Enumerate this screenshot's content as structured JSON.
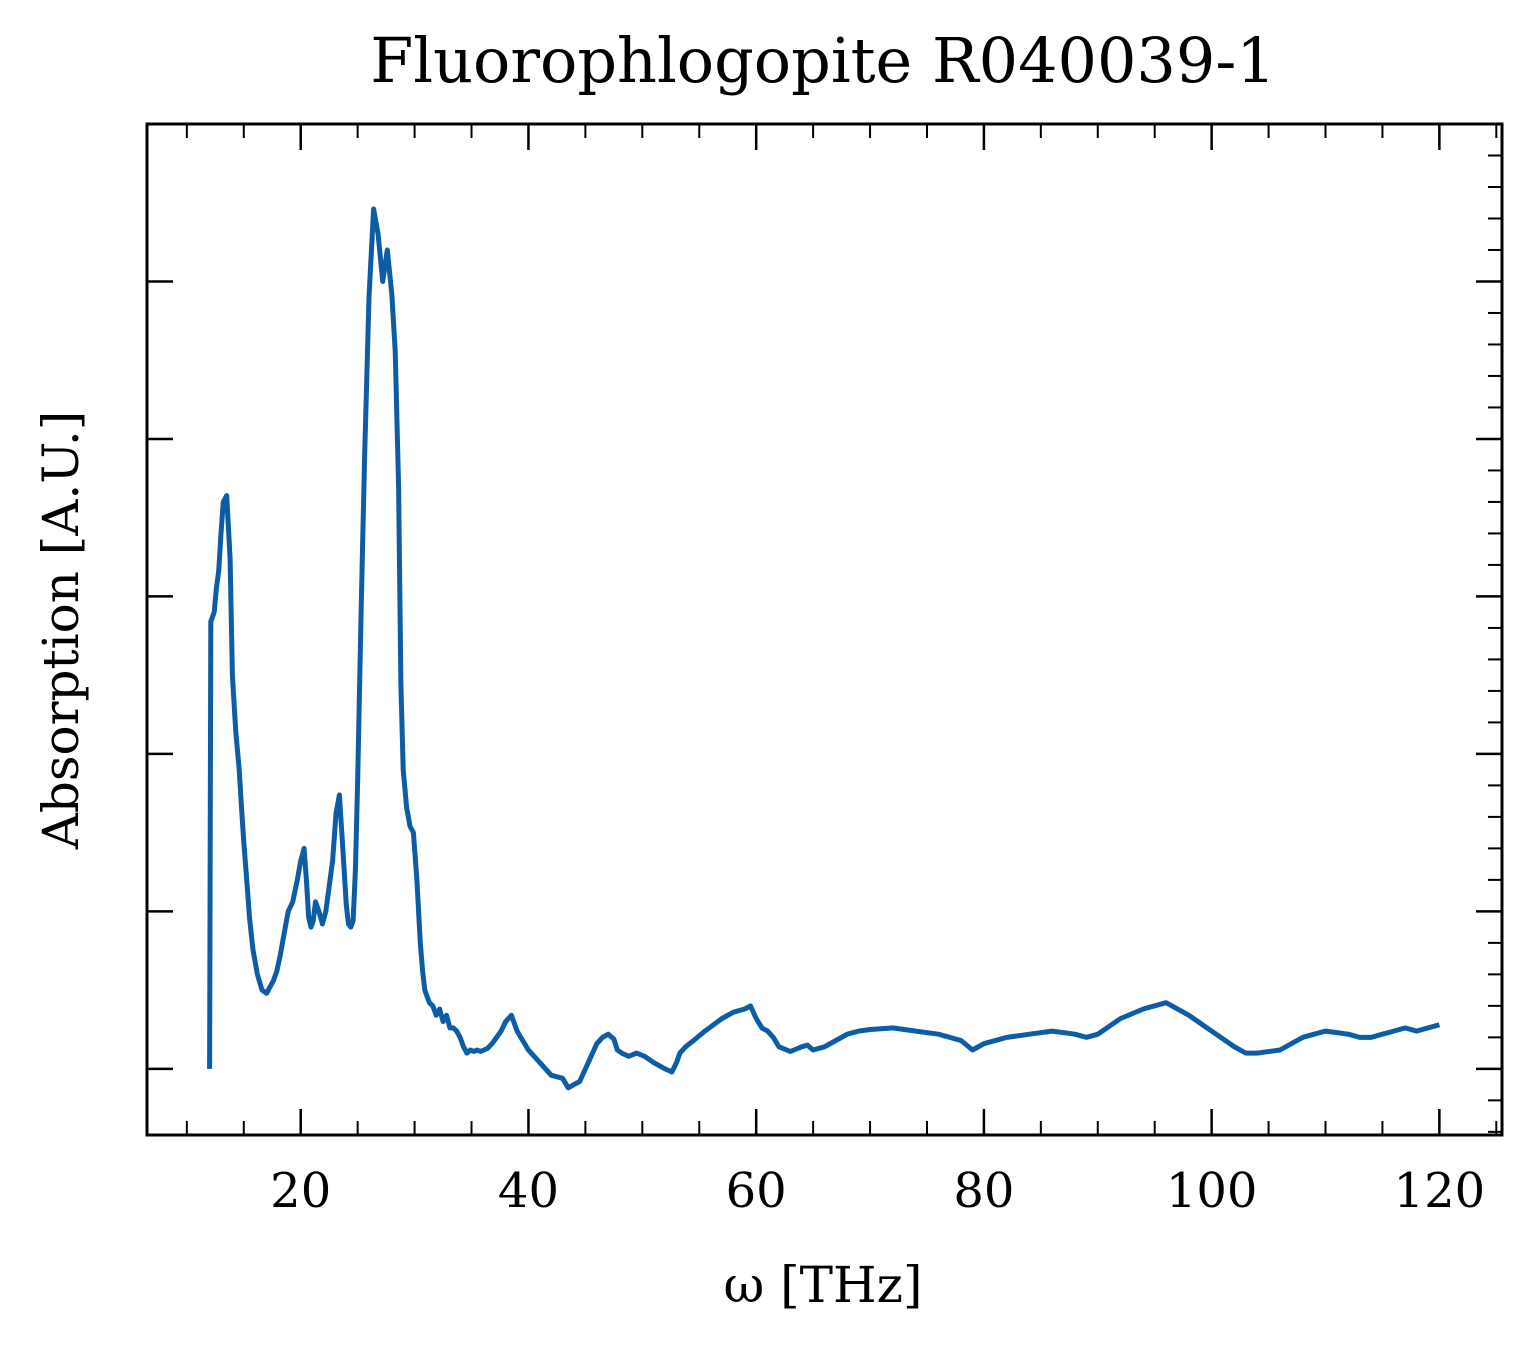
{
  "chart_data": {
    "type": "line",
    "title": "Fluorophlogopite R040039-1",
    "xlabel": "ω [THz]",
    "ylabel": "Absorption [A.U.]",
    "xlim": [
      6.5,
      125.5
    ],
    "ylim": [
      -0.21,
      3.0
    ],
    "xticks": [
      20,
      40,
      60,
      80,
      100,
      120
    ],
    "xtick_labels": [
      "20",
      "40",
      "60",
      "80",
      "100",
      "120"
    ],
    "yticks": [
      0.0,
      0.5,
      1.0,
      1.5,
      2.0,
      2.5
    ],
    "y_tick_labels_shown": false,
    "grid": false,
    "line_color": "#0c5da5",
    "series": [
      {
        "name": "",
        "x": [
          12.0,
          12.1,
          12.4,
          12.6,
          12.8,
          13.0,
          13.2,
          13.5,
          13.8,
          14.0,
          14.3,
          14.6,
          14.8,
          15.0,
          15.3,
          15.5,
          15.8,
          16.2,
          16.6,
          17.0,
          17.3,
          17.6,
          17.9,
          18.2,
          18.5,
          18.9,
          19.3,
          19.7,
          20.0,
          20.3,
          20.5,
          20.7,
          20.9,
          21.1,
          21.3,
          21.6,
          21.9,
          22.2,
          22.5,
          22.8,
          23.1,
          23.4,
          23.7,
          24.0,
          24.2,
          24.4,
          24.6,
          24.8,
          25.0,
          25.3,
          25.6,
          26.0,
          26.4,
          26.8,
          27.2,
          27.6,
          28.0,
          28.3,
          28.6,
          28.8,
          29.0,
          29.3,
          29.6,
          29.9,
          30.2,
          30.5,
          30.7,
          30.9,
          31.1,
          31.3,
          31.6,
          31.9,
          32.2,
          32.5,
          32.8,
          33.1,
          33.4,
          33.7,
          34.0,
          34.3,
          34.6,
          34.9,
          35.2,
          35.5,
          35.8,
          36.1,
          36.4,
          36.8,
          37.2,
          37.6,
          38.0,
          38.5,
          39.0,
          40.0,
          41.0,
          42.0,
          43.0,
          43.5,
          44.0,
          44.5,
          45.0,
          45.5,
          46.0,
          46.5,
          47.0,
          47.5,
          47.8,
          48.2,
          48.8,
          49.5,
          50.2,
          51.0,
          52.0,
          52.6,
          53.0,
          53.3,
          53.8,
          54.5,
          55.5,
          57.0,
          58.0,
          59.0,
          59.5,
          60.0,
          60.5,
          61.0,
          61.5,
          62.0,
          63.0,
          64.0,
          64.5,
          65.0,
          66.0,
          67.0,
          68.0,
          69.0,
          70.0,
          72.0,
          74.0,
          76.0,
          78.0,
          79.0,
          80.0,
          82.0,
          84.0,
          86.0,
          88.0,
          89.0,
          90.0,
          92.0,
          94.0,
          96.0,
          98.0,
          100.0,
          102.0,
          103.0,
          104.0,
          106.0,
          107.0,
          108.0,
          109.0,
          110.0,
          111.0,
          112.0,
          113.0,
          114.0,
          115.0,
          116.0,
          117.0,
          118.0,
          119.0,
          120.0
        ],
        "y": [
          0.0,
          1.42,
          1.45,
          1.53,
          1.58,
          1.7,
          1.8,
          1.82,
          1.62,
          1.25,
          1.07,
          0.95,
          0.83,
          0.72,
          0.58,
          0.48,
          0.38,
          0.3,
          0.25,
          0.24,
          0.26,
          0.28,
          0.31,
          0.36,
          0.42,
          0.5,
          0.53,
          0.6,
          0.66,
          0.7,
          0.6,
          0.48,
          0.45,
          0.47,
          0.53,
          0.5,
          0.46,
          0.5,
          0.58,
          0.66,
          0.81,
          0.87,
          0.7,
          0.52,
          0.46,
          0.45,
          0.47,
          0.63,
          0.92,
          1.45,
          1.93,
          2.45,
          2.73,
          2.65,
          2.5,
          2.6,
          2.46,
          2.28,
          1.85,
          1.22,
          0.95,
          0.83,
          0.77,
          0.75,
          0.6,
          0.4,
          0.31,
          0.25,
          0.23,
          0.21,
          0.2,
          0.17,
          0.19,
          0.15,
          0.17,
          0.13,
          0.13,
          0.12,
          0.1,
          0.07,
          0.05,
          0.06,
          0.055,
          0.06,
          0.055,
          0.06,
          0.065,
          0.08,
          0.1,
          0.12,
          0.15,
          0.17,
          0.12,
          0.06,
          0.02,
          -0.02,
          -0.03,
          -0.06,
          -0.05,
          -0.04,
          0.0,
          0.04,
          0.08,
          0.1,
          0.11,
          0.095,
          0.06,
          0.05,
          0.04,
          0.05,
          0.04,
          0.02,
          0.0,
          -0.01,
          0.02,
          0.05,
          0.07,
          0.09,
          0.12,
          0.16,
          0.18,
          0.19,
          0.2,
          0.16,
          0.13,
          0.12,
          0.1,
          0.07,
          0.055,
          0.07,
          0.075,
          0.06,
          0.07,
          0.09,
          0.11,
          0.12,
          0.125,
          0.13,
          0.12,
          0.11,
          0.09,
          0.06,
          0.08,
          0.1,
          0.11,
          0.12,
          0.11,
          0.1,
          0.11,
          0.16,
          0.19,
          0.21,
          0.17,
          0.12,
          0.07,
          0.05,
          0.05,
          0.06,
          0.08,
          0.1,
          0.11,
          0.12,
          0.115,
          0.11,
          0.1,
          0.1,
          0.11,
          0.12,
          0.13,
          0.12,
          0.13,
          0.14
        ]
      }
    ]
  }
}
